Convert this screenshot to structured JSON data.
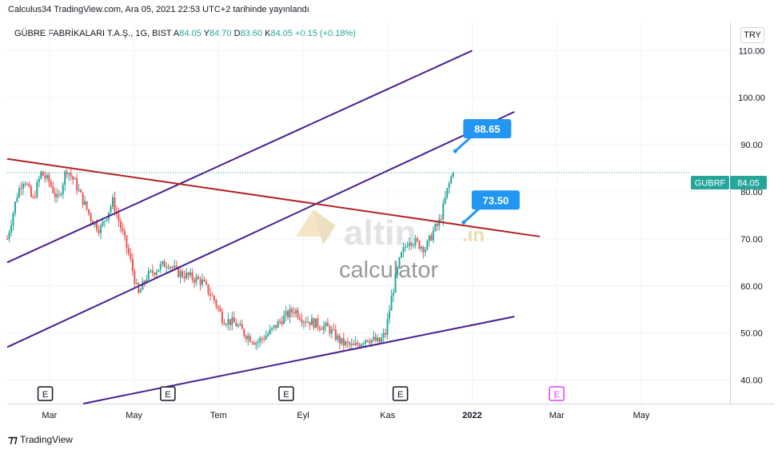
{
  "header": {
    "published": "Calculus34 TradingView.com, Ara 05, 2021 22:53 UTC+2 tarihinde yayınlandı"
  },
  "symbol": {
    "name": "GÜBRE FABRİKALARI T.A.Ş., 1G, BIST",
    "open_label": "A",
    "open": "84.05",
    "high_label": "Y",
    "high": "84.70",
    "low_label": "D",
    "low": "83.60",
    "close_label": "K",
    "close": "84.05",
    "change": "+0.15 (+0.18%)"
  },
  "currency": "TRY",
  "price_tag": {
    "ticker": "GUBRF",
    "value": "84.05"
  },
  "callouts": [
    {
      "label": "88.65"
    },
    {
      "label": "73.50"
    }
  ],
  "watermark": {
    "brand": "altin",
    "suffix": ".in",
    "tagline": "calculator"
  },
  "footer": {
    "brand": "TradingView"
  },
  "colors": {
    "up": "#26a69a",
    "down": "#ef5350",
    "channel": "#4a1f8f",
    "trendline": "#b22222",
    "callout": "#2196f3"
  },
  "chart_data": {
    "type": "candlestick",
    "ylim": [
      35,
      116
    ],
    "y_ticks": [
      40,
      50,
      60,
      70,
      80,
      90,
      100,
      110
    ],
    "y_tick_labels": [
      "40.00",
      "50.00",
      "60.00",
      "70.00",
      "80.00",
      "90.00",
      "100.00",
      "110.00"
    ],
    "x_labels": [
      {
        "label": "Mar",
        "x": 2.0
      },
      {
        "label": "May",
        "x": 4.0
      },
      {
        "label": "Tem",
        "x": 6.0
      },
      {
        "label": "Eyl",
        "x": 8.0
      },
      {
        "label": "Kas",
        "x": 10.0
      },
      {
        "label": "2022",
        "x": 12.0
      },
      {
        "label": "Mar",
        "x": 14.0
      },
      {
        "label": "May",
        "x": 16.0
      }
    ],
    "x_range": [
      1.0,
      18.1
    ],
    "price_path": [
      [
        1.0,
        70
      ],
      [
        1.25,
        80
      ],
      [
        1.4,
        83
      ],
      [
        1.6,
        78
      ],
      [
        1.8,
        84
      ],
      [
        2.0,
        82
      ],
      [
        2.2,
        78
      ],
      [
        2.4,
        85
      ],
      [
        2.6,
        82
      ],
      [
        2.8,
        78
      ],
      [
        3.0,
        74
      ],
      [
        3.2,
        72
      ],
      [
        3.5,
        78
      ],
      [
        3.7,
        72
      ],
      [
        3.9,
        66
      ],
      [
        4.1,
        58
      ],
      [
        4.3,
        62
      ],
      [
        4.6,
        64
      ],
      [
        4.8,
        65
      ],
      [
        5.0,
        63
      ],
      [
        5.3,
        62
      ],
      [
        5.6,
        61
      ],
      [
        5.9,
        57
      ],
      [
        6.1,
        53
      ],
      [
        6.4,
        52
      ],
      [
        6.6,
        50
      ],
      [
        6.9,
        48
      ],
      [
        7.2,
        50
      ],
      [
        7.5,
        53
      ],
      [
        7.8,
        55
      ],
      [
        8.0,
        53
      ],
      [
        8.3,
        52
      ],
      [
        8.6,
        51
      ],
      [
        8.9,
        48
      ],
      [
        9.2,
        47
      ],
      [
        9.5,
        49
      ],
      [
        9.8,
        48
      ],
      [
        9.95,
        50
      ],
      [
        10.1,
        58
      ],
      [
        10.3,
        66
      ],
      [
        10.5,
        70
      ],
      [
        10.7,
        69
      ],
      [
        10.9,
        68
      ],
      [
        11.1,
        72
      ],
      [
        11.2,
        73
      ],
      [
        11.3,
        76
      ],
      [
        11.4,
        80
      ],
      [
        11.5,
        83
      ],
      [
        11.55,
        84.05
      ]
    ],
    "events": [
      {
        "label": "E",
        "x": 1.9,
        "future": false
      },
      {
        "label": "E",
        "x": 4.8,
        "future": false
      },
      {
        "label": "E",
        "x": 7.6,
        "future": false
      },
      {
        "label": "E",
        "x": 10.3,
        "future": false
      },
      {
        "label": "E",
        "x": 14.0,
        "future": true
      }
    ],
    "lines": [
      {
        "name": "channel-upper",
        "points": [
          [
            1.0,
            65
          ],
          [
            12.0,
            110
          ]
        ]
      },
      {
        "name": "channel-middle",
        "points": [
          [
            1.0,
            47
          ],
          [
            13.0,
            97
          ]
        ]
      },
      {
        "name": "channel-lower",
        "points": [
          [
            2.8,
            35
          ],
          [
            13.0,
            53.5
          ]
        ]
      },
      {
        "name": "resistance-trend",
        "points": [
          [
            1.0,
            87
          ],
          [
            13.6,
            70.5
          ]
        ]
      }
    ],
    "targets": [
      {
        "value": 88.65,
        "x": 11.6
      },
      {
        "value": 73.5,
        "x": 11.8
      }
    ],
    "last_price": 84.05
  }
}
